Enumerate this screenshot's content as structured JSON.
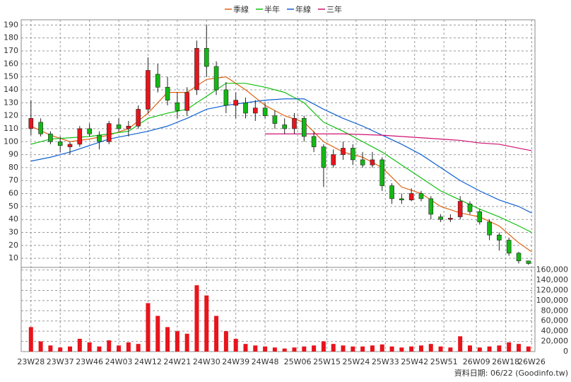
{
  "chart_data": {
    "type": "candlestick",
    "up_color": "#e8141c",
    "down_color": "#14b814",
    "xlim": [
      -3,
      155
    ],
    "xticks": [
      {
        "value": 0,
        "label": "23W28"
      },
      {
        "value": 9,
        "label": "23W37"
      },
      {
        "value": 18,
        "label": "23W46"
      },
      {
        "value": 27,
        "label": "24W03"
      },
      {
        "value": 36,
        "label": "24W12"
      },
      {
        "value": 45,
        "label": "24W21"
      },
      {
        "value": 54,
        "label": "24W30"
      },
      {
        "value": 63,
        "label": "24W39"
      },
      {
        "value": 72,
        "label": "24W48"
      },
      {
        "value": 82,
        "label": "25W06"
      },
      {
        "value": 91,
        "label": "25W15"
      },
      {
        "value": 100,
        "label": "25W24"
      },
      {
        "value": 109,
        "label": "25W33"
      },
      {
        "value": 118,
        "label": "25W42"
      },
      {
        "value": 127,
        "label": "25W51"
      },
      {
        "value": 137,
        "label": "26W09"
      },
      {
        "value": 146,
        "label": "26W18"
      },
      {
        "value": 154,
        "label": "26W26"
      }
    ],
    "ylim": [
      3,
      194
    ],
    "yticks": [
      10,
      20,
      30,
      40,
      50,
      60,
      70,
      80,
      90,
      100,
      110,
      120,
      130,
      140,
      150,
      160,
      170,
      180,
      190
    ],
    "grid": true,
    "candles": {
      "x": [
        0,
        3,
        6,
        9,
        12,
        15,
        18,
        21,
        24,
        27,
        30,
        33,
        36,
        39,
        42,
        45,
        48,
        51,
        54,
        57,
        60,
        63,
        66,
        69,
        72,
        75,
        78,
        81,
        84,
        87,
        90,
        93,
        96,
        99,
        102,
        105,
        108,
        111,
        114,
        117,
        120,
        123,
        126,
        129,
        132,
        135,
        138,
        141,
        144,
        147,
        150,
        153
      ],
      "open": [
        110,
        115,
        106,
        100,
        96,
        98,
        110,
        105,
        100,
        113,
        110,
        112,
        125,
        152,
        142,
        130,
        124,
        140,
        172,
        158,
        140,
        128,
        130,
        122,
        126,
        120,
        113,
        110,
        118,
        104,
        96,
        82,
        90,
        95,
        86,
        82,
        86,
        66,
        56,
        55,
        60,
        56,
        42,
        40,
        42,
        52,
        46,
        38,
        28,
        24,
        14,
        8
      ],
      "high": [
        132,
        118,
        108,
        104,
        100,
        112,
        114,
        108,
        116,
        118,
        116,
        128,
        165,
        160,
        150,
        138,
        142,
        178,
        190,
        162,
        146,
        138,
        134,
        132,
        130,
        124,
        118,
        122,
        120,
        108,
        98,
        94,
        100,
        98,
        92,
        92,
        88,
        68,
        60,
        64,
        62,
        58,
        44,
        44,
        58,
        54,
        48,
        40,
        30,
        26,
        15,
        8
      ],
      "low": [
        105,
        104,
        98,
        92,
        90,
        96,
        104,
        94,
        98,
        108,
        104,
        110,
        122,
        138,
        128,
        118,
        120,
        136,
        150,
        136,
        122,
        118,
        118,
        116,
        118,
        110,
        106,
        106,
        100,
        92,
        65,
        80,
        86,
        82,
        80,
        80,
        62,
        52,
        52,
        54,
        54,
        40,
        38,
        38,
        40,
        44,
        36,
        24,
        16,
        12,
        6,
        5
      ],
      "close": [
        118,
        106,
        100,
        97,
        98,
        110,
        106,
        100,
        114,
        110,
        112,
        125,
        155,
        142,
        132,
        124,
        138,
        172,
        158,
        140,
        128,
        132,
        122,
        126,
        120,
        114,
        110,
        118,
        104,
        96,
        80,
        90,
        95,
        86,
        82,
        86,
        66,
        56,
        55,
        60,
        56,
        44,
        40,
        41,
        54,
        46,
        38,
        28,
        24,
        14,
        8,
        6
      ]
    },
    "series": [
      {
        "name": "季線",
        "color": "#e06010",
        "x": [
          0,
          6,
          12,
          18,
          24,
          30,
          36,
          42,
          48,
          54,
          60,
          66,
          72,
          78,
          84,
          90,
          96,
          102,
          108,
          114,
          120,
          126,
          132,
          138,
          144,
          150,
          154
        ],
        "values": [
          112,
          105,
          100,
          102,
          105,
          110,
          122,
          138,
          138,
          148,
          150,
          140,
          128,
          120,
          115,
          100,
          92,
          88,
          80,
          65,
          60,
          50,
          45,
          42,
          35,
          22,
          15
        ]
      },
      {
        "name": "半年",
        "color": "#10c010",
        "x": [
          0,
          6,
          12,
          18,
          24,
          30,
          36,
          42,
          48,
          54,
          60,
          66,
          72,
          78,
          84,
          90,
          96,
          102,
          108,
          114,
          120,
          126,
          132,
          138,
          144,
          150,
          154
        ],
        "values": [
          98,
          102,
          103,
          104,
          106,
          108,
          118,
          122,
          125,
          135,
          145,
          145,
          142,
          138,
          130,
          115,
          108,
          100,
          92,
          82,
          72,
          62,
          55,
          48,
          42,
          35,
          30
        ]
      },
      {
        "name": "年線",
        "color": "#1060d0",
        "x": [
          0,
          6,
          12,
          18,
          24,
          30,
          36,
          42,
          48,
          54,
          60,
          66,
          72,
          78,
          84,
          90,
          96,
          102,
          108,
          114,
          120,
          126,
          132,
          138,
          144,
          150,
          154
        ],
        "values": [
          85,
          88,
          92,
          97,
          102,
          105,
          108,
          112,
          118,
          125,
          128,
          130,
          132,
          133,
          133,
          125,
          118,
          112,
          105,
          98,
          90,
          80,
          70,
          62,
          55,
          50,
          45
        ]
      },
      {
        "name": "三年",
        "color": "#d01070",
        "x": [
          72,
          84,
          96,
          108,
          120,
          132,
          138,
          144,
          150,
          154
        ],
        "values": [
          106,
          106,
          106,
          105,
          103,
          101,
          99,
          98,
          95,
          93
        ]
      }
    ],
    "volume": {
      "color": "#e8141c",
      "ylim": [
        0,
        165000
      ],
      "yticks": [
        {
          "value": 0,
          "label": "0"
        },
        {
          "value": 20000,
          "label": "20,000"
        },
        {
          "value": 40000,
          "label": "40,000"
        },
        {
          "value": 60000,
          "label": "60,000"
        },
        {
          "value": 80000,
          "label": "80,000"
        },
        {
          "value": 100000,
          "label": "100,000"
        },
        {
          "value": 120000,
          "label": "120,000"
        },
        {
          "value": 140000,
          "label": "140,000"
        },
        {
          "value": 160000,
          "label": "160,000"
        }
      ],
      "values": [
        48000,
        20000,
        12000,
        8000,
        10000,
        25000,
        18000,
        10000,
        22000,
        12000,
        18000,
        15000,
        95000,
        70000,
        48000,
        40000,
        35000,
        130000,
        110000,
        70000,
        40000,
        25000,
        15000,
        12000,
        10000,
        8000,
        6000,
        8000,
        10000,
        12000,
        20000,
        15000,
        12000,
        10000,
        10000,
        12000,
        14000,
        10000,
        8000,
        10000,
        12000,
        15000,
        10000,
        8000,
        30000,
        12000,
        8000,
        10000,
        12000,
        18000,
        15000,
        10000
      ]
    },
    "source": "資料日期: 06/22 (Goodinfo.tw)"
  }
}
